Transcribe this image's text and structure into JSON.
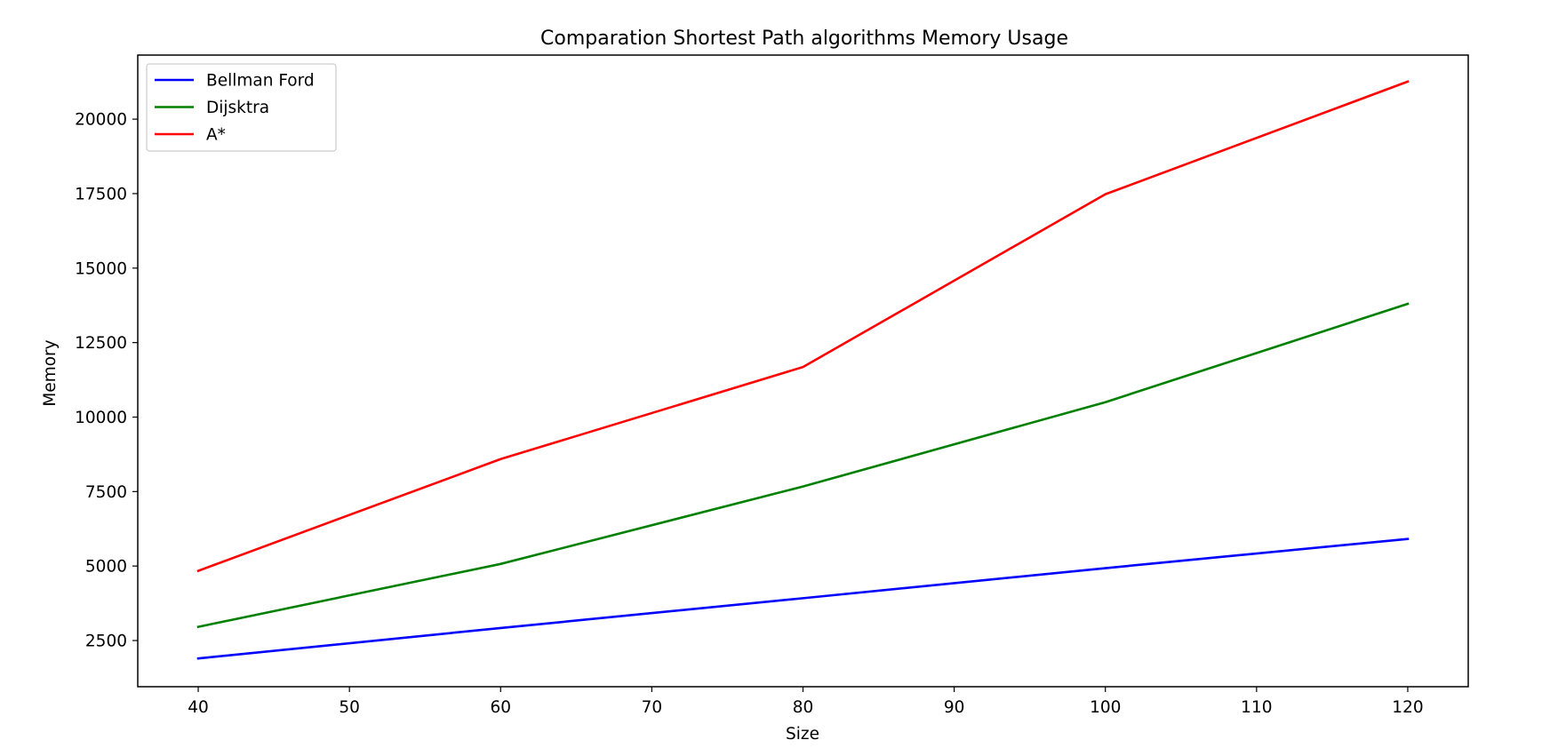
{
  "chart_data": {
    "type": "line",
    "title": "Comparation Shortest Path algorithms Memory Usage",
    "xlabel": "Size",
    "ylabel": "Memory",
    "x": [
      40,
      60,
      80,
      100,
      120
    ],
    "xlim": [
      36,
      124
    ],
    "ylim": [
      950,
      22150
    ],
    "xticks": [
      40,
      50,
      60,
      70,
      80,
      90,
      100,
      110,
      120
    ],
    "yticks": [
      2500,
      5000,
      7500,
      10000,
      12500,
      15000,
      17500,
      20000
    ],
    "grid": false,
    "legend_position": "top-left",
    "series": [
      {
        "name": "Bellman Ford",
        "color": "#0000ff",
        "values": [
          1900,
          2920,
          3920,
          4930,
          5910
        ]
      },
      {
        "name": "Dijsktra",
        "color": "#008000",
        "values": [
          2960,
          5070,
          7670,
          10500,
          13800
        ]
      },
      {
        "name": "A*",
        "color": "#ff0000",
        "values": [
          4840,
          8590,
          11680,
          17480,
          21260
        ]
      }
    ]
  }
}
